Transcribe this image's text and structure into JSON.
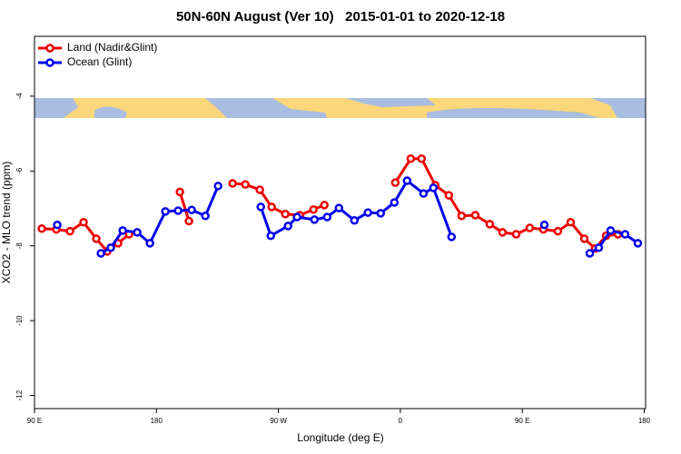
{
  "chart_data": {
    "type": "line",
    "title": "50N-60N August (Ver 10)   2015-01-01 to 2020-12-18",
    "xlabel": "Longitude (deg E)",
    "ylabel": "XCO2 - MLO trend (ppm)",
    "xlim": [
      90,
      541
    ],
    "ylim": [
      -12.35,
      -2.4
    ],
    "xticks": [
      {
        "value": 90,
        "label": "90 E"
      },
      180,
      {
        "value": 270,
        "label": "90 W"
      },
      {
        "value": 360,
        "label": "0"
      },
      {
        "value": 450,
        "label": "90 E"
      },
      {
        "value": 540,
        "label": "180"
      }
    ],
    "yticks": [
      -4,
      -6,
      -8,
      -10,
      -12
    ],
    "legend": "top-left",
    "series": [
      {
        "name": "Land (Nadir&Glint)",
        "color": "#ee0000",
        "x": [
          95.4,
          106.1,
          116.2,
          126.2,
          135.6,
          143.7,
          151.7,
          159.8,
          null,
          197.3,
          204.0,
          null,
          236.2,
          245.6,
          256.3,
          265.0,
          275.1,
          285.8,
          295.9,
          303.9,
          null,
          356.3,
          367.7,
          375.7,
          385.8,
          395.8,
          405.2,
          415.3,
          426.0,
          435.4,
          445.5,
          455.5,
          465.6,
          476.3,
          485.7,
          495.8,
          503.8,
          511.9,
          520.6
        ],
        "values": [
          -7.54,
          -7.56,
          -7.61,
          -7.37,
          -7.81,
          -8.15,
          -7.93,
          -7.69,
          null,
          -6.56,
          -7.34,
          null,
          -6.33,
          -6.36,
          -6.5,
          -6.96,
          -7.15,
          -7.18,
          -7.03,
          -6.91,
          null,
          -6.31,
          -5.67,
          -5.67,
          -6.38,
          -6.65,
          -7.2,
          -7.18,
          -7.42,
          -7.64,
          -7.69,
          -7.52,
          -7.56,
          -7.61,
          -7.37,
          -7.81,
          -8.07,
          -7.73,
          -7.69
        ]
      },
      {
        "name": "Ocean (Glint)",
        "color": "#0000ee",
        "x": [
          106.8,
          null,
          139.0,
          146.3,
          155.1,
          165.8,
          175.2,
          186.6,
          196.0,
          206.0,
          216.1,
          225.5,
          null,
          257.0,
          264.4,
          277.1,
          283.8,
          296.6,
          306.0,
          314.7,
          326.1,
          336.1,
          345.5,
          355.6,
          365.0,
          377.1,
          384.4,
          397.8,
          null,
          466.3,
          null,
          499.8,
          506.5,
          515.2,
          525.9,
          535.3
        ],
        "values": [
          -7.44,
          null,
          -8.2,
          -8.05,
          -7.59,
          -7.64,
          -7.93,
          -7.08,
          -7.06,
          -7.04,
          -7.2,
          -6.4,
          null,
          -6.96,
          -7.73,
          -7.47,
          -7.23,
          -7.3,
          -7.23,
          -6.99,
          -7.32,
          -7.11,
          -7.13,
          -6.84,
          -6.26,
          -6.6,
          -6.45,
          -7.76,
          null,
          -7.44,
          null,
          -8.2,
          -8.05,
          -7.59,
          -7.69,
          -7.93
        ]
      }
    ]
  }
}
